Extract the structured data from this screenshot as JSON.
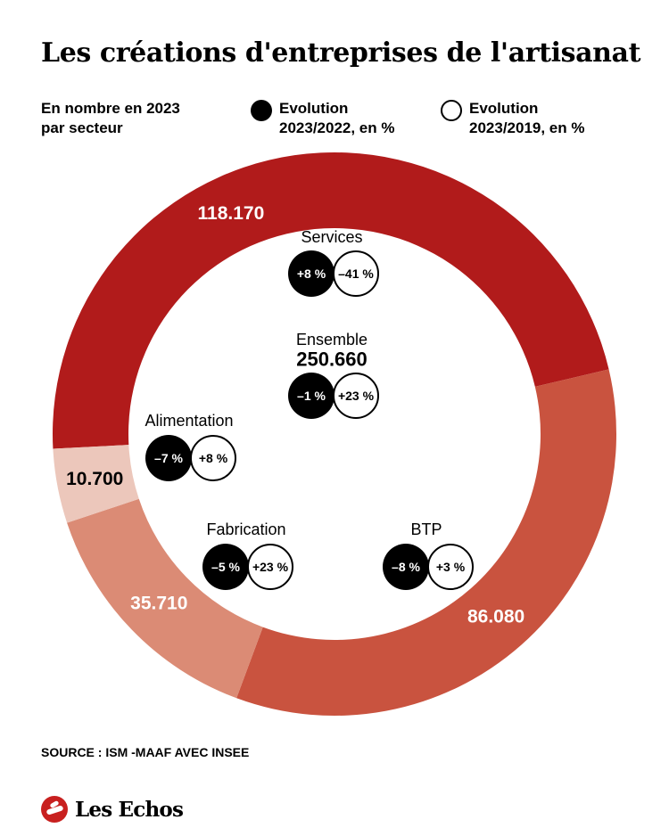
{
  "title": "Les créations d'entreprises de l'artisanat",
  "legend": {
    "subtitle_line1": "En nombre en 2023",
    "subtitle_line2": "par secteur",
    "black_line1": "Evolution",
    "black_line2": "2023/2022, en %",
    "white_line1": "Evolution",
    "white_line2": "2023/2019, en %"
  },
  "colors": {
    "services": "#b11b1b",
    "btp": "#c9533f",
    "fabrication": "#db8b75",
    "alimentation": "#ecc7bb"
  },
  "chart_data": {
    "type": "pie",
    "subtype": "donut",
    "total": {
      "label": "Ensemble",
      "value": 250660,
      "value_label": "250.660",
      "evo_2023_2022": "–1 %",
      "evo_2023_2019": "+23 %"
    },
    "slices": [
      {
        "key": "services",
        "name": "Services",
        "value": 118170,
        "value_label": "118.170",
        "evo_2023_2022": "+8 %",
        "evo_2023_2019": "–41 %"
      },
      {
        "key": "btp",
        "name": "BTP",
        "value": 86080,
        "value_label": "86.080",
        "evo_2023_2022": "–8 %",
        "evo_2023_2019": "+3 %"
      },
      {
        "key": "fabrication",
        "name": "Fabrication",
        "value": 35710,
        "value_label": "35.710",
        "evo_2023_2022": "–5 %",
        "evo_2023_2019": "+23 %"
      },
      {
        "key": "alimentation",
        "name": "Alimentation",
        "value": 10700,
        "value_label": "10.700",
        "evo_2023_2022": "–7 %",
        "evo_2023_2019": "+8 %"
      }
    ]
  },
  "source": "SOURCE : ISM -MAAF AVEC INSEE",
  "brand": "Les Echos"
}
